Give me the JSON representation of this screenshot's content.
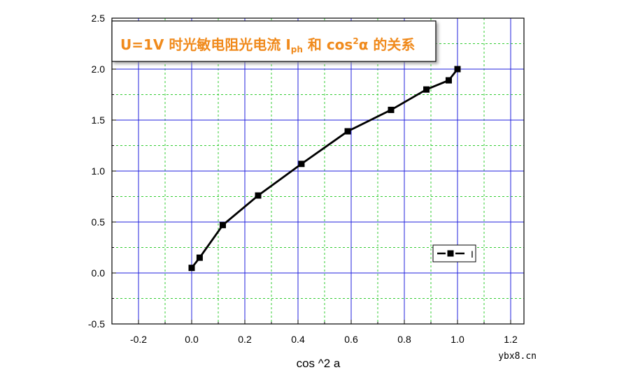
{
  "chart_data": {
    "type": "line",
    "title": "U=1V 时光敏电阻光电流 I",
    "title_subscript": "ph",
    "title_rest": " 和 cos",
    "title_superscript": "2",
    "title_end": "α 的关系",
    "xlabel": "cos ^2 a",
    "ylabel": "",
    "xlim": [
      -0.3,
      1.25
    ],
    "ylim": [
      -0.5,
      2.5
    ],
    "x_ticks": [
      -0.2,
      0.0,
      0.2,
      0.4,
      0.6,
      0.8,
      1.0,
      1.2
    ],
    "y_ticks": [
      -0.5,
      0.0,
      0.5,
      1.0,
      1.5,
      2.0,
      2.5
    ],
    "grid": true,
    "legend_position": "right",
    "series": [
      {
        "name": "I",
        "color": "#000000",
        "x": [
          0.0,
          0.03,
          0.117,
          0.25,
          0.413,
          0.587,
          0.75,
          0.883,
          0.967,
          1.0
        ],
        "y": [
          0.05,
          0.15,
          0.47,
          0.76,
          1.07,
          1.39,
          1.6,
          1.8,
          1.89,
          2.0
        ]
      }
    ],
    "colors": {
      "major_grid": "#2222dd",
      "minor_grid": "#33cc33",
      "title": "#f08a1c"
    }
  },
  "watermark": "ybx8.cn"
}
